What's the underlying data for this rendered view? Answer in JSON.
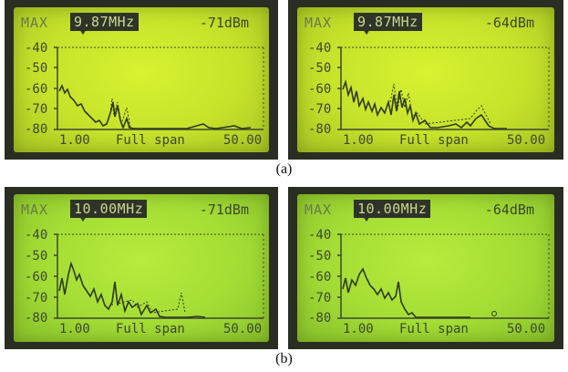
{
  "panels": [
    {
      "max_label": "MAX",
      "freq": "9.87MHz",
      "level": "-71dBm",
      "y_ticks": [
        "-40",
        "-50",
        "-60",
        "-70",
        "-80"
      ],
      "x_left": "1.00",
      "x_center": "Full span",
      "x_right": "50.00",
      "background": "#c6e22a"
    },
    {
      "max_label": "MAX",
      "freq": "9.87MHz",
      "level": "-64dBm",
      "y_ticks": [
        "-40",
        "-50",
        "-60",
        "-70",
        "-80"
      ],
      "x_left": "1.00",
      "x_center": "Full span",
      "x_right": "50.00",
      "background": "#c6e22a"
    },
    {
      "max_label": "MAX",
      "freq": "10.00MHz",
      "level": "-71dBm",
      "y_ticks": [
        "-40",
        "-50",
        "-60",
        "-70",
        "-80"
      ],
      "x_left": "1.00",
      "x_center": "Full span",
      "x_right": "50.00",
      "background": "#a3dc34"
    },
    {
      "max_label": "MAX",
      "freq": "10.00MHz",
      "level": "-64dBm",
      "y_ticks": [
        "-40",
        "-50",
        "-60",
        "-70",
        "-80"
      ],
      "x_left": "1.00",
      "x_center": "Full span",
      "x_right": "50.00",
      "background": "#a3dc34"
    }
  ],
  "captions": {
    "a": "(a)",
    "b": "(b)"
  }
}
